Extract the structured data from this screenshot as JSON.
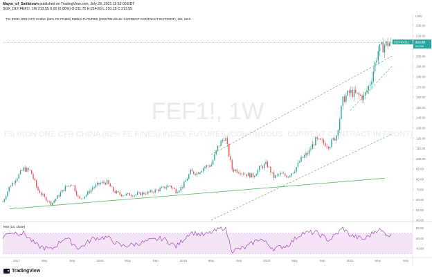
{
  "header": {
    "author": "Mayor_of_Smiletown",
    "published": "published on TradingView.com, July 28, 2021 11:52:00 EDT",
    "ohlc_line": "SGX_DLY:FEF1!, 1W  213.55 0.00 (0.00%) O:211.75 H:214.65 L:210.15 C:213.55"
  },
  "chart_title": "TSI IRON ORE CFR CHINA (62% FE FINES) INDEX FUTURES (CONTINUOUS: CURRENT CONTRACT IN FRONT), 1W, SGX",
  "watermark": {
    "symbol": "FEF1!, 1W",
    "description": "TSI IRON ORE CFR CHINA (62% FE FINES) INDEX FUTURES (CONTINUOUS: CURRENT CONTRACT IN FRONT)"
  },
  "price_scale": {
    "currency": "USD",
    "ticks": [
      40,
      50,
      60,
      70,
      80,
      90,
      100,
      110,
      120,
      130,
      140,
      150,
      160,
      170,
      180,
      190,
      200,
      210,
      220,
      230,
      240
    ]
  },
  "last_price_label": {
    "symbol": "FEFHDO21",
    "price": "213.55",
    "change": "2d 21h"
  },
  "rsi": {
    "label": "RSI (14, close)",
    "ticks": [
      40,
      60,
      80
    ],
    "upper": 70,
    "lower": 30
  },
  "time_axis": [
    "2017",
    "May",
    "Sep",
    "2018",
    "May",
    "Sep",
    "2019",
    "May",
    "Sep",
    "2020",
    "May",
    "Sep",
    "2021",
    "May",
    "Sep"
  ],
  "footer": {
    "brand": "TradingView"
  },
  "colors": {
    "up": "#26a69a",
    "down": "#ef5350",
    "trend": "#66bb6a",
    "rsi_line": "#9c27b0",
    "rsi_band": "#f3e5f5",
    "price_line": "#26a69a"
  },
  "chart_data": {
    "type": "candlestick",
    "title": "TSI IRON ORE CFR CHINA (62% FE FINES) INDEX FUTURES (CONTINUOUS: CURRENT CONTRACT IN FRONT), 1W, SGX",
    "ylabel": "USD",
    "ylim": [
      40,
      240
    ],
    "x_range": [
      "2016-11",
      "2021-10"
    ],
    "price_path": [
      [
        "2016-11",
        58
      ],
      [
        "2016-12",
        73
      ],
      [
        "2017-02",
        90
      ],
      [
        "2017-03",
        88
      ],
      [
        "2017-04",
        70
      ],
      [
        "2017-05",
        62
      ],
      [
        "2017-06",
        56
      ],
      [
        "2017-08",
        72
      ],
      [
        "2017-09",
        76
      ],
      [
        "2017-10",
        60
      ],
      [
        "2017-11",
        65
      ],
      [
        "2017-12",
        72
      ],
      [
        "2018-01",
        76
      ],
      [
        "2018-02",
        77
      ],
      [
        "2018-03",
        68
      ],
      [
        "2018-04",
        65
      ],
      [
        "2018-06",
        65
      ],
      [
        "2018-08",
        67
      ],
      [
        "2018-10",
        71
      ],
      [
        "2018-11",
        74
      ],
      [
        "2018-12",
        68
      ],
      [
        "2019-01",
        74
      ],
      [
        "2019-02",
        87
      ],
      [
        "2019-03",
        86
      ],
      [
        "2019-04",
        92
      ],
      [
        "2019-05",
        94
      ],
      [
        "2019-06",
        112
      ],
      [
        "2019-07",
        122
      ],
      [
        "2019-08",
        90
      ],
      [
        "2019-09",
        88
      ],
      [
        "2019-10",
        85
      ],
      [
        "2019-11",
        83
      ],
      [
        "2019-12",
        91
      ],
      [
        "2020-01",
        95
      ],
      [
        "2020-02",
        82
      ],
      [
        "2020-03",
        85
      ],
      [
        "2020-04",
        83
      ],
      [
        "2020-05",
        89
      ],
      [
        "2020-06",
        100
      ],
      [
        "2020-07",
        106
      ],
      [
        "2020-08",
        118
      ],
      [
        "2020-09",
        116
      ],
      [
        "2020-10",
        113
      ],
      [
        "2020-11",
        122
      ],
      [
        "2020-12",
        158
      ],
      [
        "2021-01",
        165
      ],
      [
        "2021-02",
        162
      ],
      [
        "2021-03",
        160
      ],
      [
        "2021-04",
        176
      ],
      [
        "2021-05",
        205
      ],
      [
        "2021-06",
        211
      ],
      [
        "2021-07",
        214
      ]
    ],
    "last_close": 213.55,
    "rsi_path": [
      [
        "2016-11",
        62
      ],
      [
        "2016-12",
        72
      ],
      [
        "2017-02",
        70
      ],
      [
        "2017-04",
        45
      ],
      [
        "2017-06",
        38
      ],
      [
        "2017-08",
        62
      ],
      [
        "2017-10",
        40
      ],
      [
        "2017-12",
        60
      ],
      [
        "2018-02",
        62
      ],
      [
        "2018-04",
        45
      ],
      [
        "2018-06",
        48
      ],
      [
        "2018-08",
        55
      ],
      [
        "2018-10",
        60
      ],
      [
        "2018-12",
        44
      ],
      [
        "2019-02",
        72
      ],
      [
        "2019-04",
        66
      ],
      [
        "2019-07",
        82
      ],
      [
        "2019-08",
        36
      ],
      [
        "2019-10",
        42
      ],
      [
        "2019-12",
        60
      ],
      [
        "2020-02",
        40
      ],
      [
        "2020-04",
        46
      ],
      [
        "2020-06",
        70
      ],
      [
        "2020-08",
        72
      ],
      [
        "2020-10",
        56
      ],
      [
        "2020-12",
        80
      ],
      [
        "2021-01",
        66
      ],
      [
        "2021-03",
        58
      ],
      [
        "2021-05",
        78
      ],
      [
        "2021-06",
        70
      ],
      [
        "2021-07",
        64
      ]
    ],
    "support_line": [
      [
        "2016-12",
        51
      ],
      [
        "2021-06",
        81
      ]
    ],
    "channel_mid": [
      [
        "2019-05",
        40
      ],
      [
        "2021-07",
        124
      ]
    ],
    "channel_upper": [
      [
        "2019-05",
        104
      ],
      [
        "2021-07",
        200
      ]
    ],
    "channel_lower_short": [
      [
        "2021-01",
        147
      ],
      [
        "2021-07",
        190
      ]
    ]
  }
}
